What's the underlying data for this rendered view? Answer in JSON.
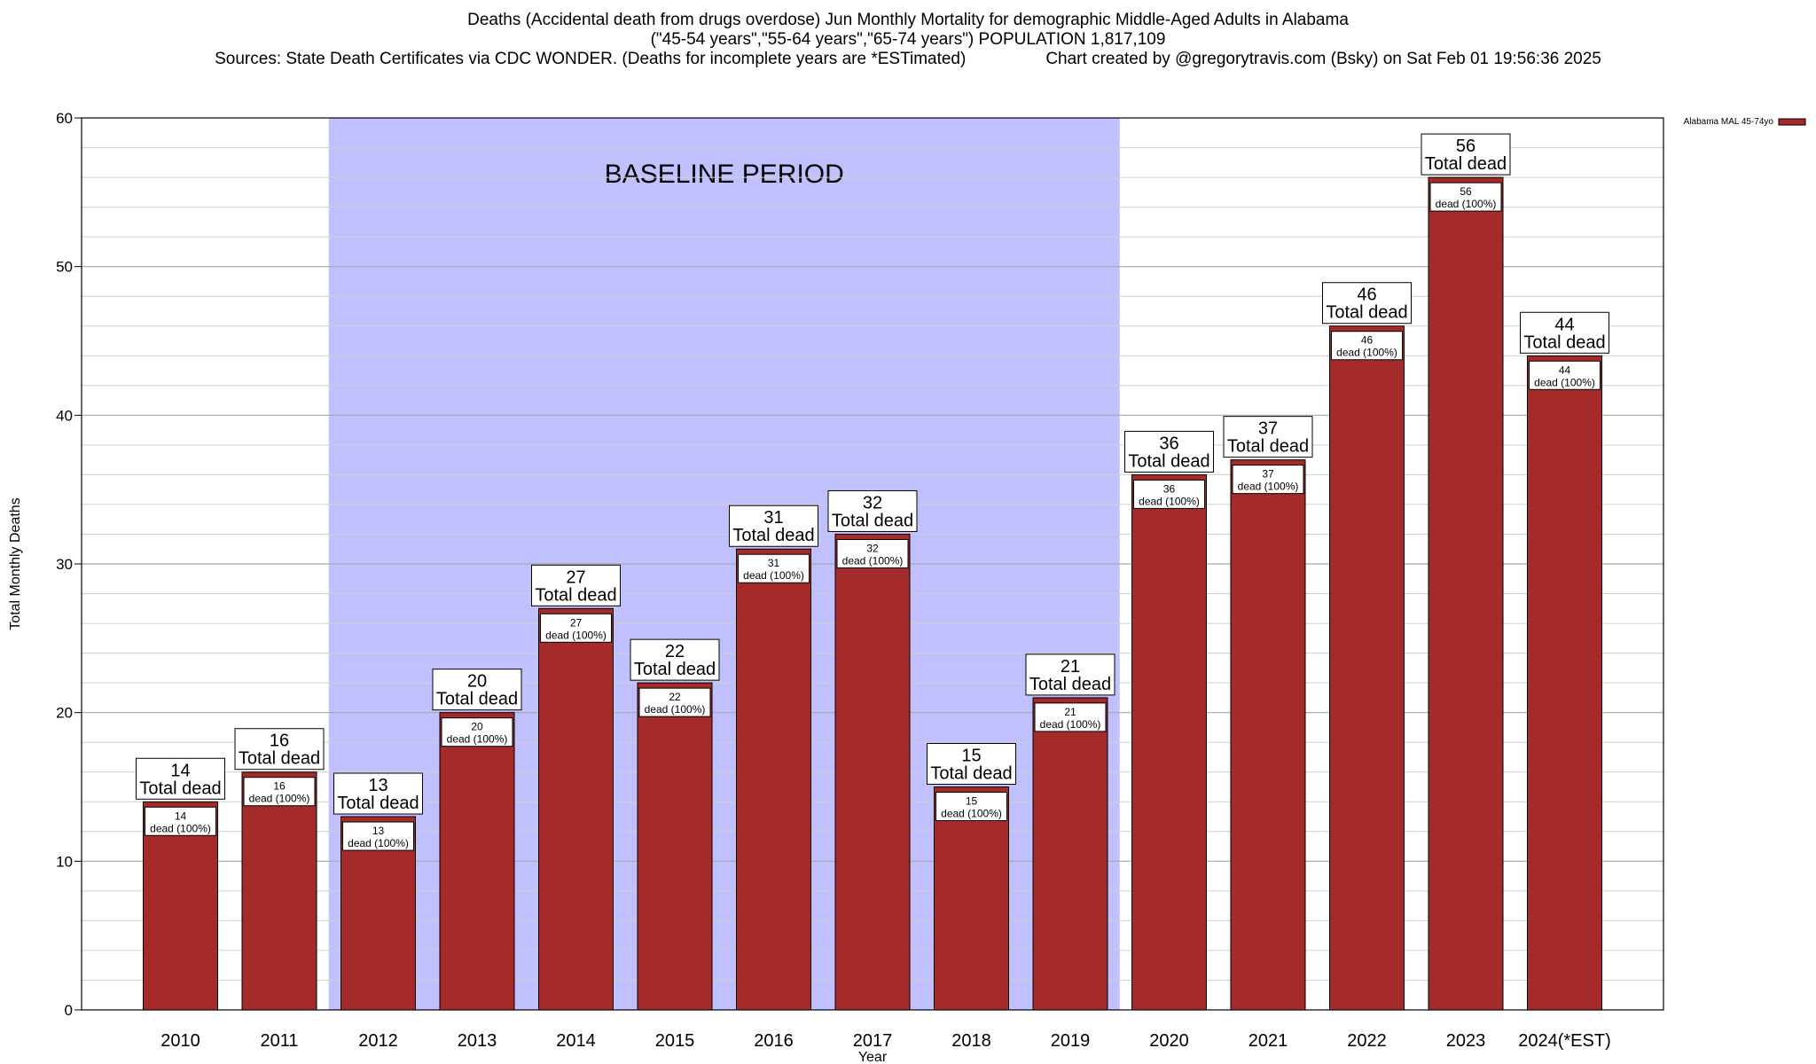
{
  "header": {
    "title_line1": "Deaths (Accidental death from drugs overdose) Jun Monthly Mortality for demographic Middle-Aged Adults in Alabama",
    "title_line2": "(\"45-54 years\",\"55-64 years\",\"65-74 years\") POPULATION 1,817,109",
    "sources": "Sources: State Death Certificates via CDC WONDER. (Deaths for incomplete years are *ESTimated)",
    "credit": "Chart created by @gregorytravis.com (Bsky) on Sat Feb 01 19:56:36 2025"
  },
  "chart_data": {
    "type": "bar",
    "xlabel": "Year",
    "ylabel": "Total Monthly Deaths",
    "ylim": [
      0,
      60
    ],
    "yticks": [
      0,
      10,
      20,
      30,
      40,
      50,
      60
    ],
    "grid": true,
    "legend": {
      "placement": "top-right",
      "label": "Alabama MAL 45-74yo",
      "color": "#a52a2a"
    },
    "bar_color": "#a52a2a",
    "shade_color": "#c0c0ff",
    "baseline": {
      "label": "BASELINE PERIOD",
      "from": "2012",
      "to": "2019"
    },
    "categories": [
      "2010",
      "2011",
      "2012",
      "2013",
      "2014",
      "2015",
      "2016",
      "2017",
      "2018",
      "2019",
      "2020",
      "2021",
      "2022",
      "2023",
      "2024(*EST)"
    ],
    "values": [
      14,
      16,
      13,
      20,
      27,
      22,
      31,
      32,
      15,
      21,
      36,
      37,
      46,
      56,
      44
    ],
    "total_label": "Total dead",
    "inner_label": "dead (100%)"
  }
}
